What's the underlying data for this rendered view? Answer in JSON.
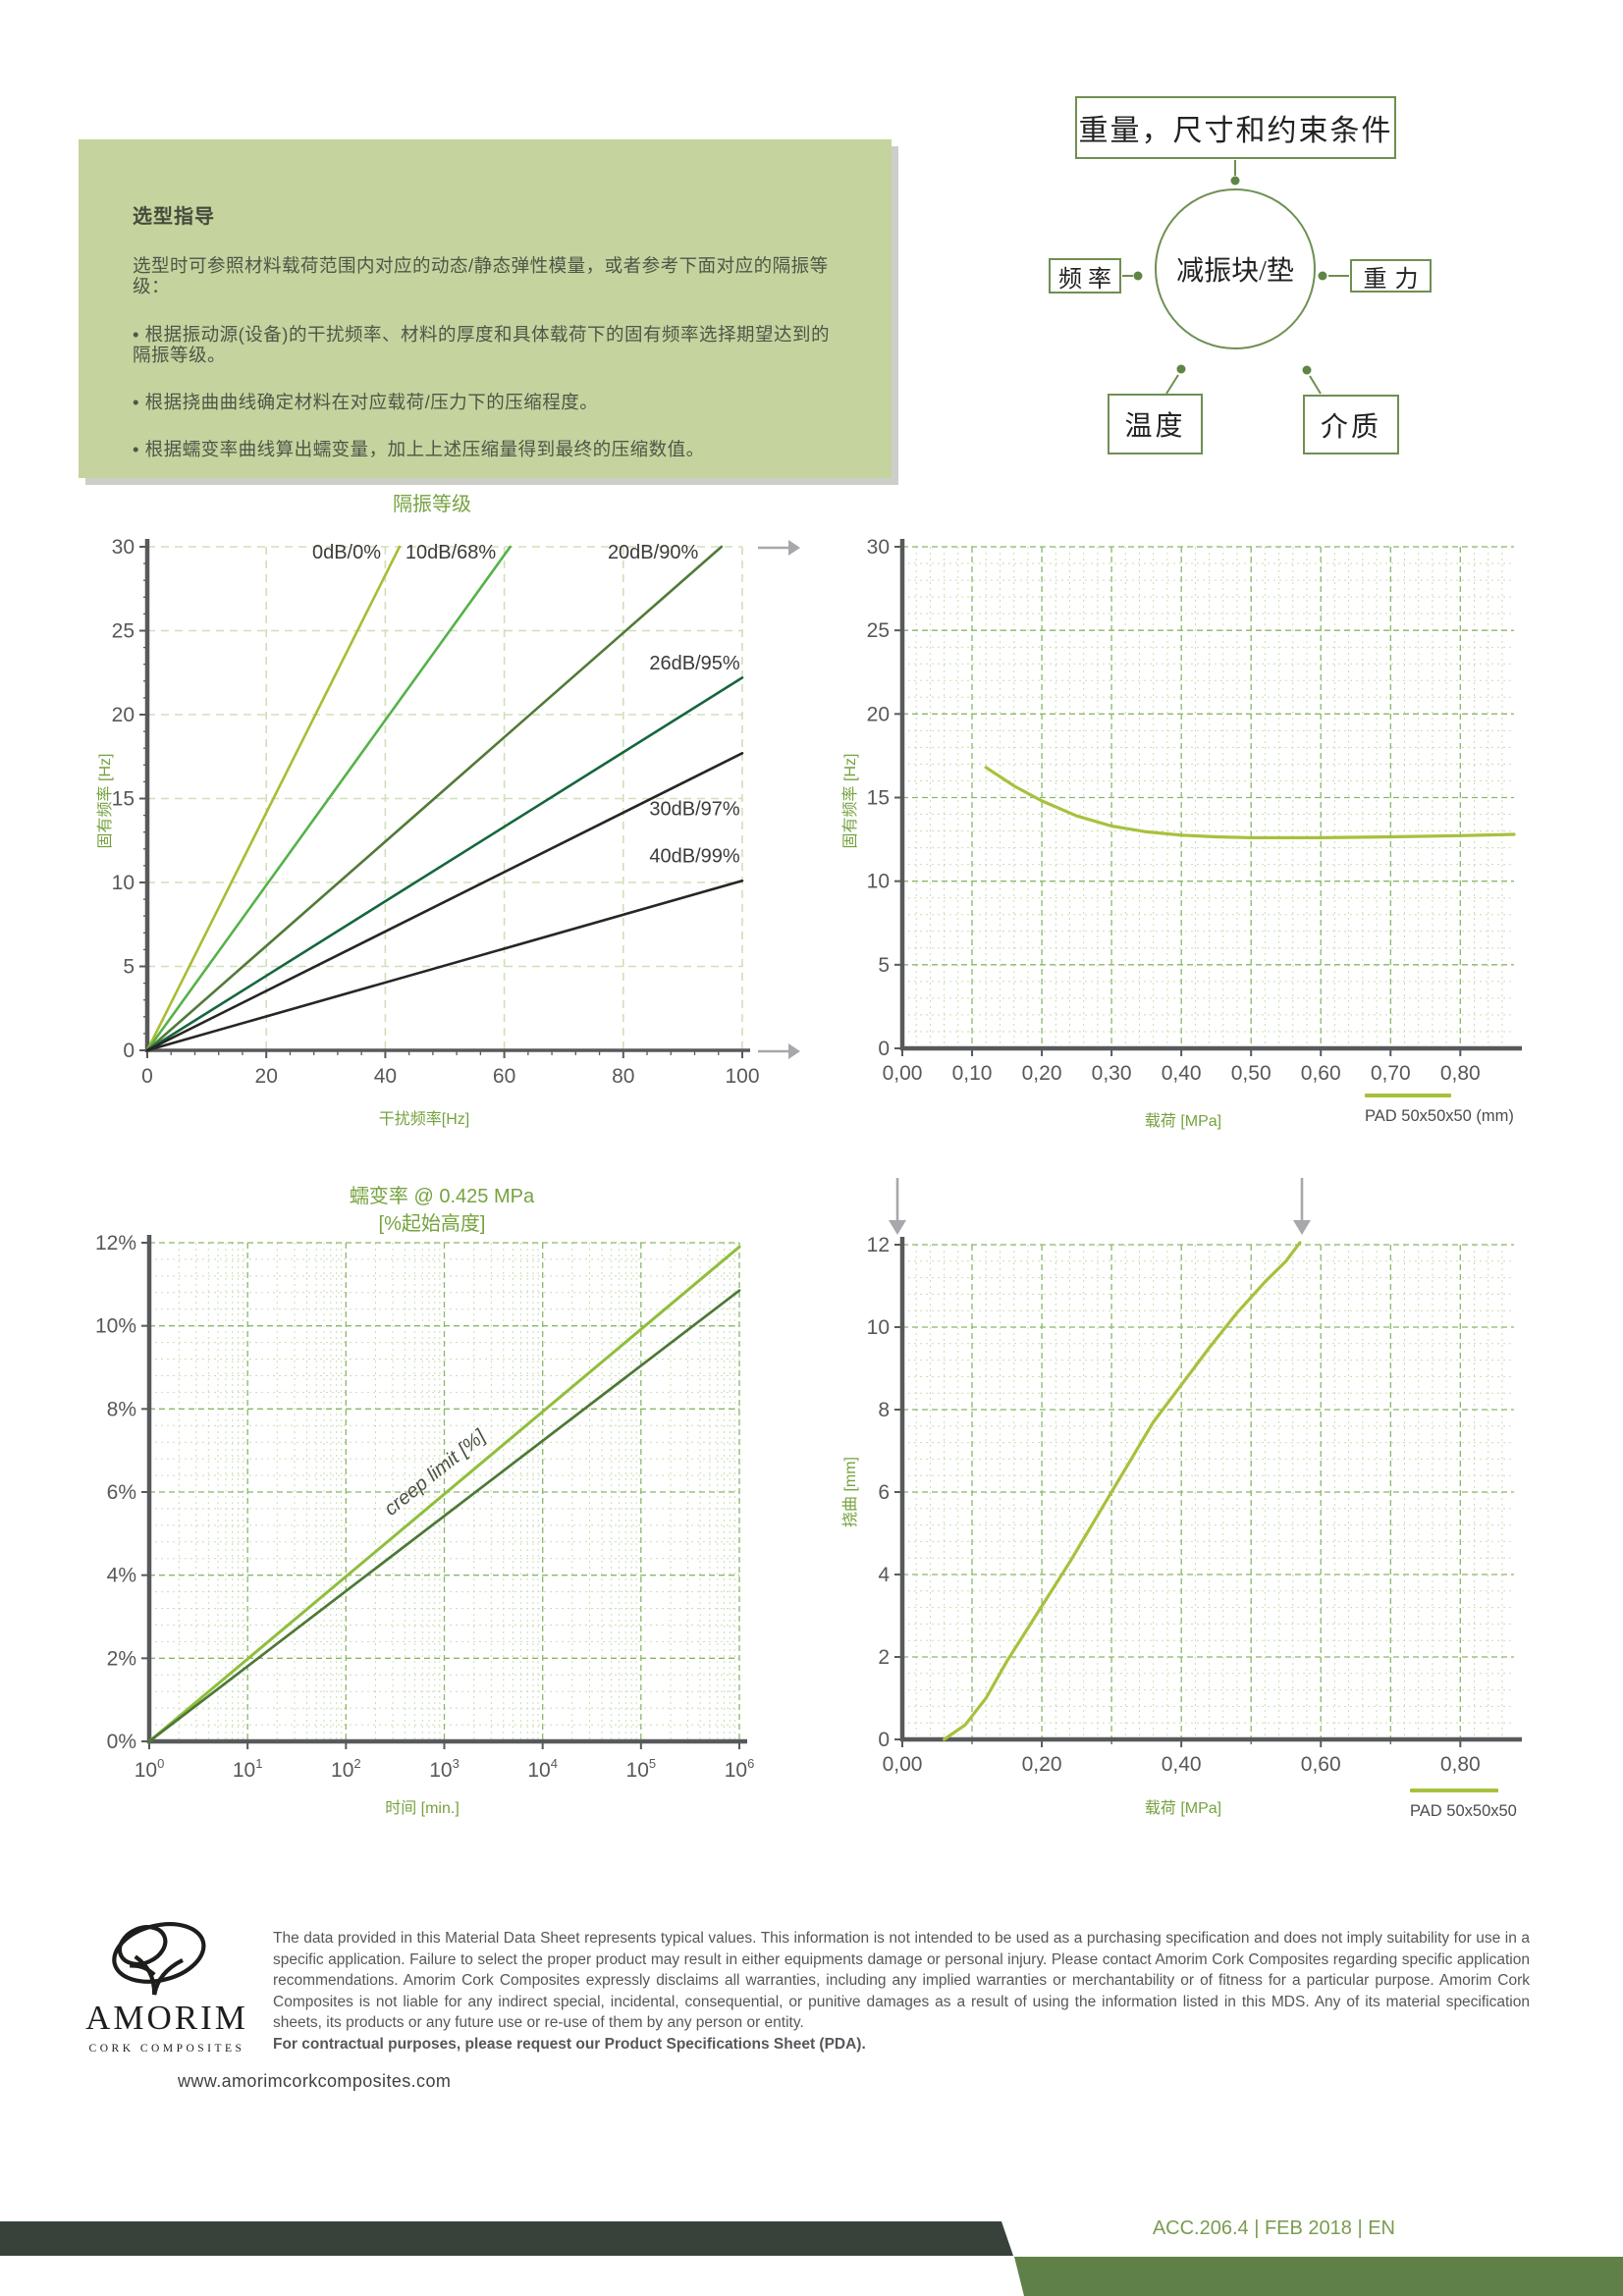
{
  "info_box": {
    "title": "选型指导",
    "intro": "选型时可参照材料载荷范围内对应的动态/静态弹性模量，或者参考下面对应的隔振等级：",
    "bullets": [
      "• 根据振动源(设备)的干扰频率、材料的厚度和具体载荷下的固有频率选择期望达到的隔振等级。",
      "• 根据挠曲曲线确定材料在对应载荷/压力下的压缩程度。",
      "• 根据蠕变率曲线算出蠕变量，加上上述压缩量得到最终的压缩数值。"
    ]
  },
  "diagram": {
    "top_box": "重量，尺寸和约束条件",
    "center": "减振块/垫",
    "left_box": "频率",
    "right_box": "重力",
    "bottom_left_box": "温度",
    "bottom_right_box": "介质",
    "line_color": "#6e8f52"
  },
  "chart_data": [
    {
      "id": "isolation",
      "type": "line",
      "title": "隔振等级",
      "xlabel": "干扰频率[Hz]",
      "ylabel": "固有频率 [Hz]",
      "xlim": [
        0,
        100
      ],
      "ylim": [
        0,
        30
      ],
      "xticks": [
        0,
        20,
        40,
        60,
        80,
        100
      ],
      "xtick_labels": [
        "0",
        "20",
        "40",
        "60",
        "80",
        "100"
      ],
      "yticks": [
        0,
        5,
        10,
        15,
        20,
        25,
        30
      ],
      "ytick_labels": [
        "0",
        "5",
        "10",
        "15",
        "20",
        "25",
        "30"
      ],
      "grid": {
        "x_major": 20,
        "y_major": 5
      },
      "series": [
        {
          "name": "0dB/0%",
          "color": "#a9bd33",
          "width": 2.6,
          "points": [
            [
              0,
              0
            ],
            [
              42.4,
              30
            ]
          ],
          "label_at": [
            33.5,
            29.3
          ]
        },
        {
          "name": "10dB/68%",
          "color": "#55b249",
          "width": 2.6,
          "points": [
            [
              0,
              0
            ],
            [
              61,
              30
            ]
          ],
          "label_at": [
            51,
            29.3
          ]
        },
        {
          "name": "20dB/90%",
          "color": "#507a37",
          "width": 2.6,
          "points": [
            [
              0,
              0
            ],
            [
              96.5,
              30
            ]
          ],
          "label_at": [
            85,
            29.3
          ]
        },
        {
          "name": "26dB/95%",
          "color": "#16663e",
          "width": 2.6,
          "points": [
            [
              0,
              0
            ],
            [
              100,
              22.2
            ]
          ],
          "label_at": [
            92,
            22.7
          ]
        },
        {
          "name": "30dB/97%",
          "color": "#262625",
          "width": 2.6,
          "points": [
            [
              0,
              0
            ],
            [
              100,
              17.7
            ]
          ],
          "label_at": [
            92,
            14.0
          ]
        },
        {
          "name": "40dB/99%",
          "color": "#262625",
          "width": 2.6,
          "points": [
            [
              0,
              0
            ],
            [
              100,
              10.1
            ]
          ],
          "label_at": [
            92,
            11.2
          ]
        }
      ]
    },
    {
      "id": "natfreq",
      "type": "line",
      "title": "",
      "xlabel": "载荷 [MPa]",
      "ylabel": "固有频率 [Hz]",
      "xlim": [
        0,
        0.877
      ],
      "ylim": [
        0,
        30
      ],
      "xticks": [
        0,
        0.1,
        0.2,
        0.3,
        0.4,
        0.5,
        0.6,
        0.7,
        0.8
      ],
      "xtick_labels": [
        "0,00",
        "0,10",
        "0,20",
        "0,30",
        "0,40",
        "0,50",
        "0,60",
        "0,70",
        "0,80"
      ],
      "yticks": [
        0,
        5,
        10,
        15,
        20,
        25,
        30
      ],
      "ytick_labels": [
        "0",
        "5",
        "10",
        "15",
        "20",
        "25",
        "30"
      ],
      "grid": {
        "x_minor": 0.02,
        "x_major": 0.1,
        "y_minor": 1,
        "y_major": 5
      },
      "legend": {
        "label": "PAD 50x50x50 (mm)",
        "color": "#a7c13d"
      },
      "series": [
        {
          "name": "PAD 50x50x50 (mm)",
          "color": "#a7c13d",
          "width": 3.2,
          "points": [
            [
              0.12,
              16.8
            ],
            [
              0.16,
              15.7
            ],
            [
              0.2,
              14.8
            ],
            [
              0.25,
              13.9
            ],
            [
              0.3,
              13.3
            ],
            [
              0.35,
              12.95
            ],
            [
              0.4,
              12.75
            ],
            [
              0.45,
              12.65
            ],
            [
              0.5,
              12.6
            ],
            [
              0.6,
              12.6
            ],
            [
              0.7,
              12.65
            ],
            [
              0.8,
              12.72
            ],
            [
              0.877,
              12.8
            ]
          ]
        }
      ]
    },
    {
      "id": "creep",
      "type": "line",
      "xscale": "log",
      "title": "蠕变率 @ 0.425 MPa",
      "subtitle": "[%起始高度]",
      "xlabel": "时间 [min.]",
      "ylabel": "",
      "xlim": [
        1,
        1000000
      ],
      "ylim": [
        0,
        12
      ],
      "xticks": [
        1,
        10,
        100,
        1000,
        10000,
        100000,
        1000000
      ],
      "xtick_labels": [
        "10^0",
        "10^1",
        "10^2",
        "10^3",
        "10^4",
        "10^5",
        "10^6"
      ],
      "yticks": [
        0,
        2,
        4,
        6,
        8,
        10,
        12
      ],
      "ytick_labels": [
        "0%",
        "2%",
        "4%",
        "6%",
        "8%",
        "10%",
        "12%"
      ],
      "grid": {
        "x_log_minor": true,
        "x_log_major": true,
        "y_minor": 0.4,
        "y_major": 2
      },
      "annotation": {
        "text": "creep limit [%]",
        "x": 880,
        "y": 6.35,
        "rotation": -39
      },
      "series": [
        {
          "name": "creep-limit-upper",
          "color": "#8fbe3c",
          "width": 3,
          "points": [
            [
              1,
              0
            ],
            [
              1000000,
              11.9
            ]
          ]
        },
        {
          "name": "creep-limit-lower",
          "color": "#4d7836",
          "width": 2.7,
          "points": [
            [
              1,
              0
            ],
            [
              1000000,
              10.85
            ]
          ]
        }
      ]
    },
    {
      "id": "deflection",
      "type": "line",
      "title": "",
      "xlabel": "载荷 [MPa]",
      "ylabel": "挠曲 [mm]",
      "xlim": [
        0,
        0.877
      ],
      "ylim": [
        0,
        12
      ],
      "xticks": [
        0,
        0.2,
        0.4,
        0.6,
        0.8
      ],
      "xtick_labels": [
        "0,00",
        "0,20",
        "0,40",
        "0,60",
        "0,80"
      ],
      "yticks": [
        0,
        2,
        4,
        6,
        8,
        10,
        12
      ],
      "ytick_labels": [
        "0",
        "2",
        "4",
        "6",
        "8",
        "10",
        "12"
      ],
      "grid": {
        "x_minor": 0.02,
        "x_major": 0.1,
        "y_minor": 0.4,
        "y_major": 2
      },
      "legend": {
        "label": "PAD 50x50x50",
        "color": "#a7c13d"
      },
      "series": [
        {
          "name": "PAD 50x50x50",
          "color": "#a7c13d",
          "width": 3.2,
          "points": [
            [
              0.06,
              0
            ],
            [
              0.09,
              0.35
            ],
            [
              0.12,
              1.0
            ],
            [
              0.15,
              1.9
            ],
            [
              0.18,
              2.7
            ],
            [
              0.21,
              3.5
            ],
            [
              0.24,
              4.3
            ],
            [
              0.27,
              5.15
            ],
            [
              0.3,
              6.0
            ],
            [
              0.33,
              6.85
            ],
            [
              0.36,
              7.7
            ],
            [
              0.4,
              8.6
            ],
            [
              0.44,
              9.5
            ],
            [
              0.48,
              10.35
            ],
            [
              0.52,
              11.1
            ],
            [
              0.55,
              11.6
            ],
            [
              0.57,
              12.05
            ]
          ]
        }
      ]
    }
  ],
  "logo": {
    "name": "AMORIM",
    "subtitle": "CORK COMPOSITES"
  },
  "footer": {
    "disclaimer": "The data provided in this Material Data Sheet represents typical values. This information is not intended to be used as a purchasing specification and does not imply suitability for use in a specific application. Failure to select the proper product may result in either equipments damage or personal injury. Please contact Amorim Cork Composites regarding specific application recommendations. Amorim Cork Composites expressly disclaims all warranties, including any implied warranties or merchantability or of fitness for a particular purpose. Amorim Cork Composites is not liable for any indirect special, incidental, consequential, or punitive damages as a result of using the information listed in this MDS. Any of its material specification sheets, its products or any future use or re-use of them by any person or entity.",
    "disclaimer_bold": "For contractual purposes, please request our Product Specifications Sheet (PDA).",
    "website": "www.amorimcorkcomposites.com",
    "doc_ref": "ACC.206.4 | FEB 2018 | EN",
    "bar_olive": "#5f8148",
    "bar_dark": "#39423a"
  }
}
